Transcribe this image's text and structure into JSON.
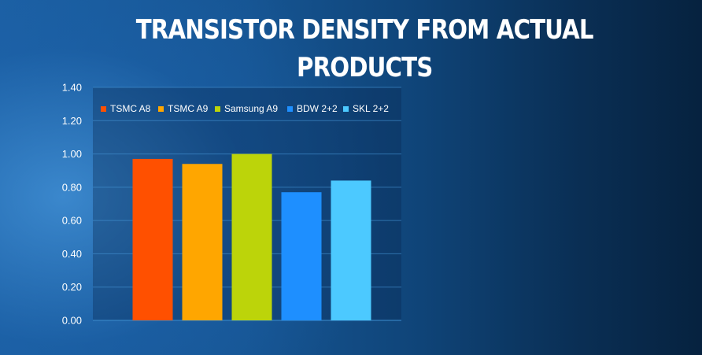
{
  "slide": {
    "title": "TRANSISTOR DENSITY FROM ACTUAL PRODUCTS"
  },
  "chart_data": {
    "type": "bar",
    "title": "TRANSISTOR DENSITY FROM ACTUAL PRODUCTS",
    "categories": [
      "TSMC A8",
      "TSMC A9",
      "Samsung A9",
      "BDW 2+2",
      "SKL 2+2"
    ],
    "values": [
      0.97,
      0.94,
      1.0,
      0.77,
      0.84
    ],
    "colors": [
      "#ff5000",
      "#ffa600",
      "#bcd40a",
      "#1e8fff",
      "#4cc9ff"
    ],
    "yticks": [
      "0.00",
      "0.20",
      "0.40",
      "0.60",
      "0.80",
      "1.00",
      "1.20",
      "1.40"
    ],
    "ylim": [
      0,
      1.4
    ],
    "grid": true,
    "legend": "top",
    "xlabel": "",
    "ylabel": ""
  }
}
